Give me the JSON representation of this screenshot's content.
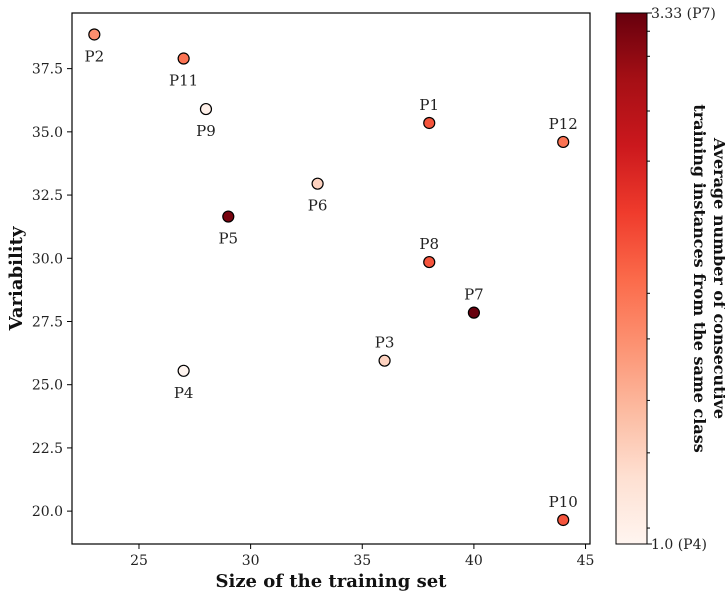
{
  "chart_data": {
    "type": "scatter",
    "xlabel": "Size of the training set",
    "ylabel": "Variability",
    "xlim": [
      22,
      45.2
    ],
    "ylim": [
      18.7,
      39.7
    ],
    "xticks": [
      25,
      30,
      35,
      40,
      45
    ],
    "yticks": [
      20.0,
      22.5,
      25.0,
      27.5,
      30.0,
      32.5,
      35.0,
      37.5
    ],
    "xtick_labels": [
      "25",
      "30",
      "35",
      "40",
      "45"
    ],
    "ytick_labels": [
      "20.0",
      "22.5",
      "25.0",
      "27.5",
      "30.0",
      "32.5",
      "35.0",
      "37.5"
    ],
    "grid": false,
    "colorbar": {
      "title_lines": [
        "Average number of consecutive",
        "training instances from the same class"
      ],
      "min": 1.0,
      "max": 3.33,
      "min_label": "1.0 (P4)",
      "max_label": "3.33 (P7)",
      "colormap_colors": [
        "#fff5f0",
        "#fee0d2",
        "#fcbba1",
        "#fc9272",
        "#fb6a4a",
        "#ef3b2c",
        "#cb181d",
        "#a50f15",
        "#67000d"
      ],
      "minor_ticks": [
        1.07,
        1.4,
        1.63,
        1.9,
        2.1,
        2.68,
        2.9,
        3.14,
        3.25
      ]
    },
    "points": [
      {
        "label": "P1",
        "x": 38,
        "y": 35.35,
        "c": 2.3,
        "label_pos": "above"
      },
      {
        "label": "P2",
        "x": 23,
        "y": 38.85,
        "c": 1.9,
        "label_pos": "below"
      },
      {
        "label": "P3",
        "x": 36,
        "y": 25.95,
        "c": 1.4,
        "label_pos": "above"
      },
      {
        "label": "P4",
        "x": 27,
        "y": 25.55,
        "c": 1.0,
        "label_pos": "below"
      },
      {
        "label": "P5",
        "x": 29,
        "y": 31.65,
        "c": 3.25,
        "label_pos": "below"
      },
      {
        "label": "P6",
        "x": 33,
        "y": 32.95,
        "c": 1.4,
        "label_pos": "below"
      },
      {
        "label": "P7",
        "x": 40,
        "y": 27.85,
        "c": 3.33,
        "label_pos": "above"
      },
      {
        "label": "P8",
        "x": 38,
        "y": 29.85,
        "c": 2.3,
        "label_pos": "above"
      },
      {
        "label": "P9",
        "x": 28,
        "y": 35.9,
        "c": 1.07,
        "label_pos": "below"
      },
      {
        "label": "P10",
        "x": 44,
        "y": 19.65,
        "c": 2.3,
        "label_pos": "above"
      },
      {
        "label": "P11",
        "x": 27,
        "y": 37.9,
        "c": 2.1,
        "label_pos": "below"
      },
      {
        "label": "P12",
        "x": 44,
        "y": 34.6,
        "c": 2.1,
        "label_pos": "above"
      }
    ]
  }
}
